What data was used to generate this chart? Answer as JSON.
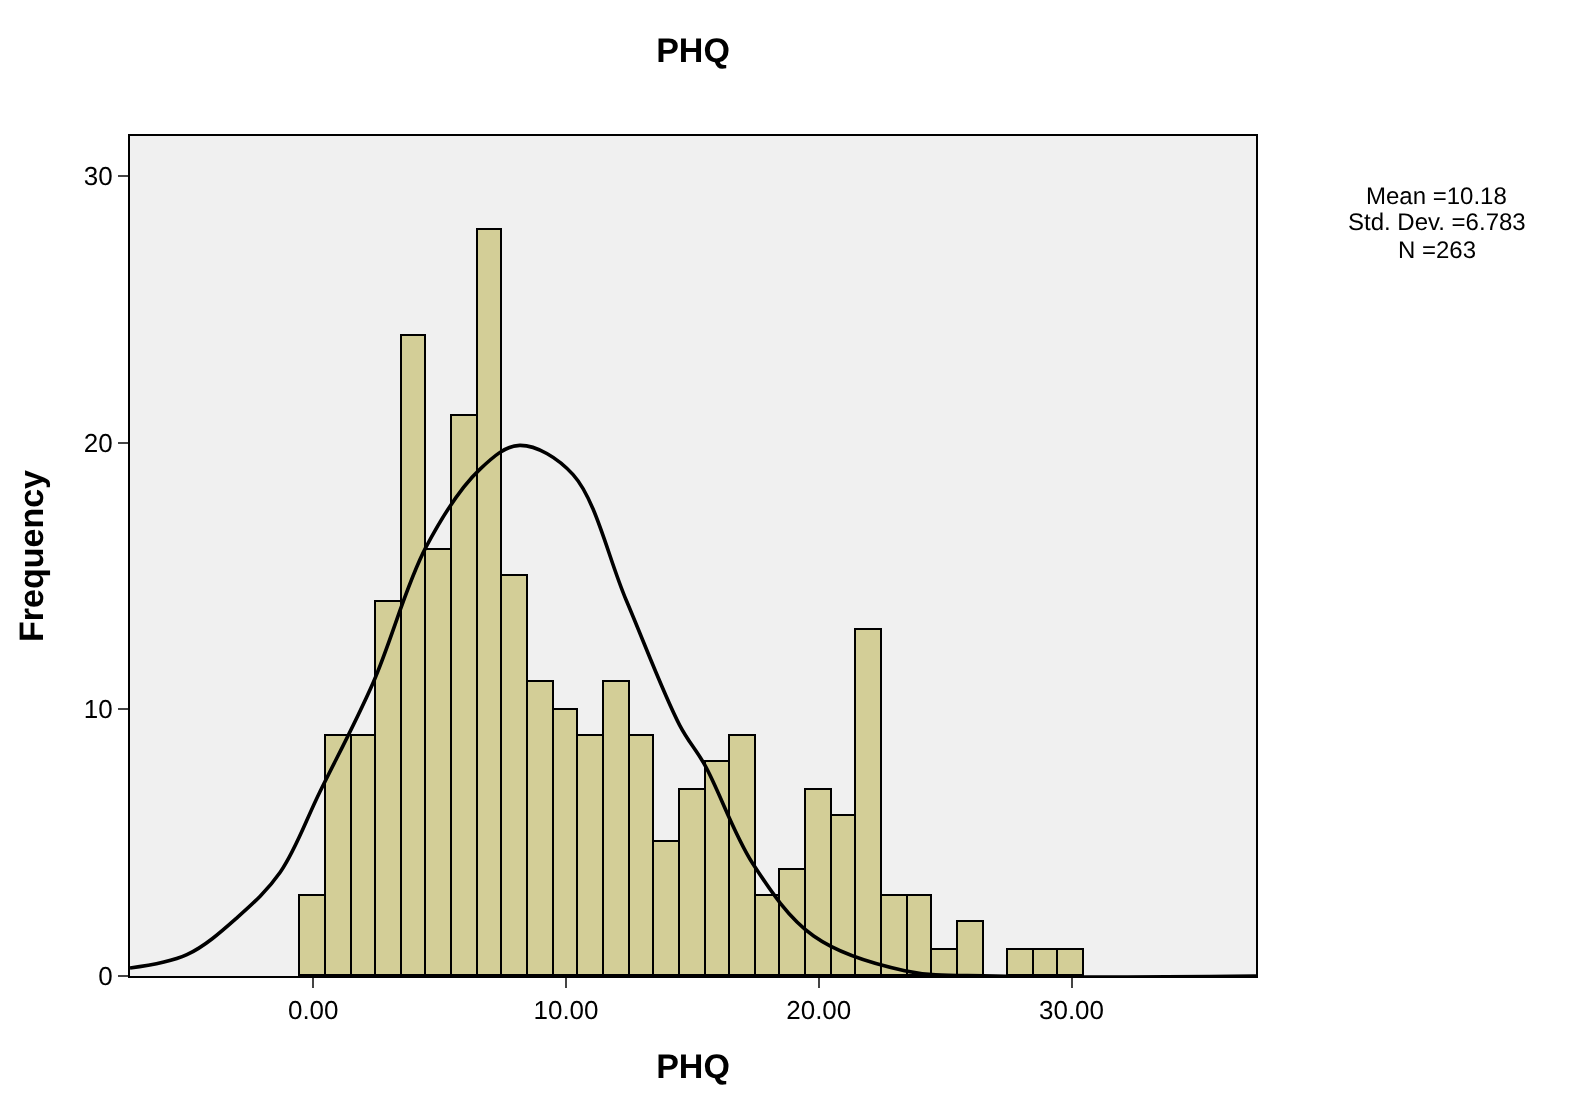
{
  "chart_data": {
    "type": "histogram",
    "title": "PHQ",
    "xlabel": "PHQ",
    "ylabel": "Frequency",
    "xlim": [
      -7.25,
      37.3
    ],
    "xticks": [
      {
        "value": 0,
        "label": "0.00"
      },
      {
        "value": 10,
        "label": "10.00"
      },
      {
        "value": 20,
        "label": "20.00"
      },
      {
        "value": 30,
        "label": "30.00"
      }
    ],
    "ylim": [
      0,
      31.5
    ],
    "yticks": [
      0,
      10,
      20,
      30
    ],
    "grid": false,
    "series": [
      {
        "color": "#d3ce97",
        "bins": [
          -0.5,
          0.5,
          1.5,
          2.5,
          3.5,
          4.5,
          5.5,
          6.5,
          7.5,
          8.5,
          9.5,
          10.5,
          11.5,
          12.5,
          13.5,
          14.5,
          15.5,
          16.5,
          17.5,
          18.5,
          19.5,
          20.5,
          21.5,
          22.5,
          23.5,
          24.5,
          25.5,
          26.5,
          27.5,
          28.5,
          29.5,
          30.5
        ],
        "values": [
          3,
          9,
          9,
          14,
          24,
          16,
          21,
          28,
          15,
          11,
          10,
          9,
          11,
          9,
          5,
          7,
          8,
          9,
          3,
          4,
          7,
          6,
          13,
          3,
          3,
          1,
          2,
          0,
          1,
          1,
          1
        ]
      },
      {
        "type": "line",
        "color": "#000000",
        "x": [
          -7.25,
          -5,
          -3,
          -1.3,
          0.26,
          2.37,
          4.47,
          6.59,
          8.17,
          10.28,
          12.38,
          14.5,
          15.5,
          17.4,
          19.8,
          23.4,
          27,
          37.3
        ],
        "values": [
          0.3,
          0.8,
          2.2,
          3.9,
          6.9,
          11,
          16.1,
          19,
          19.9,
          18.8,
          14.1,
          9.4,
          7.9,
          4.2,
          1.5,
          0.2,
          0,
          0
        ]
      }
    ],
    "annotations": [
      "Mean =10.18",
      "Std. Dev. =6.783",
      "N =263"
    ]
  }
}
